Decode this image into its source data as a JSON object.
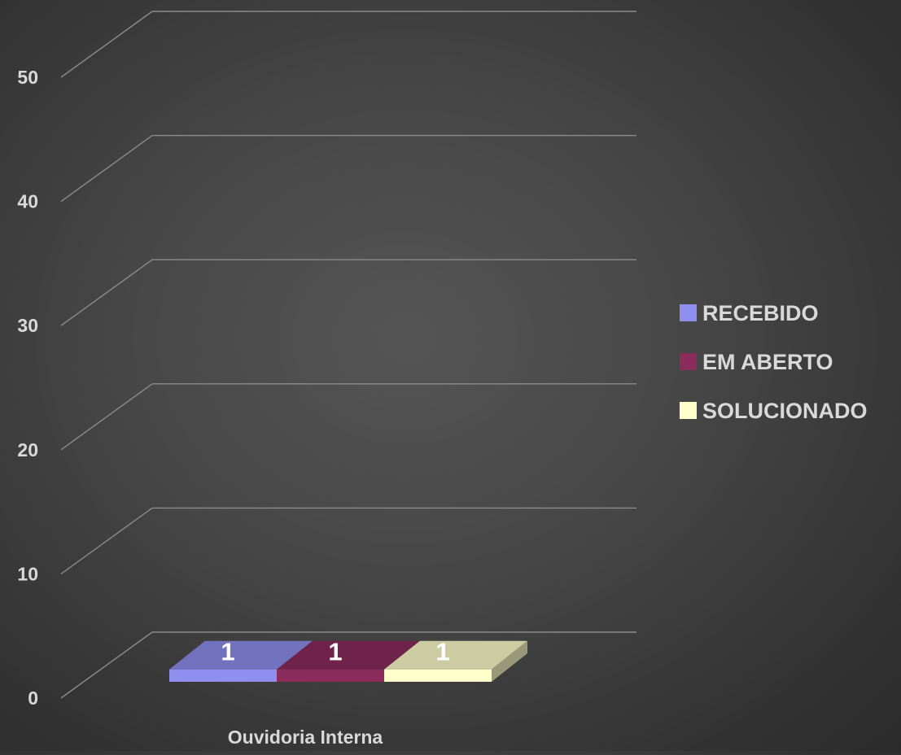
{
  "chart_data": {
    "type": "bar",
    "categories": [
      "Ouvidoria Interna"
    ],
    "series": [
      {
        "name": "RECEBIDO",
        "values": [
          1
        ],
        "color": "#8f8fef"
      },
      {
        "name": "EM ABERTO",
        "values": [
          1
        ],
        "color": "#8b2c5c"
      },
      {
        "name": "SOLUCIONADO",
        "values": [
          1
        ],
        "color": "#ffffcc"
      }
    ],
    "yticks": [
      "0",
      "10",
      "20",
      "30",
      "40",
      "50"
    ],
    "ylim": [
      0,
      50
    ],
    "data_labels": [
      "1",
      "1",
      "1"
    ],
    "grid": true,
    "three_d": true,
    "legend_position": "right",
    "colors": {
      "tick_text": "#d9d9d9",
      "label_text": "#ffffff",
      "grid": "#8c8c8c",
      "background": "#474747"
    }
  }
}
